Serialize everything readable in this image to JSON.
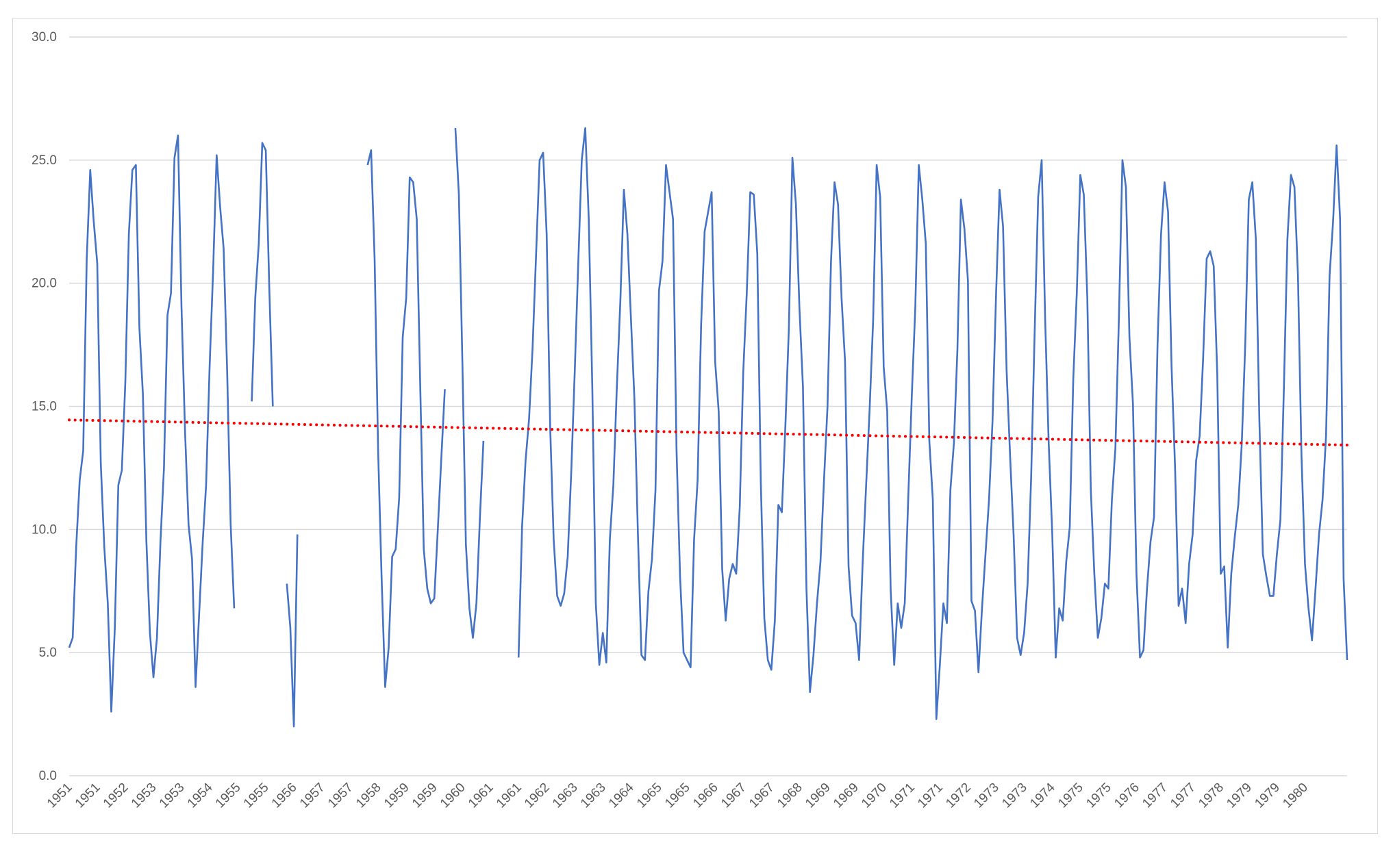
{
  "chart_data": {
    "type": "line",
    "title": "",
    "xlabel": "",
    "ylabel": "",
    "ylim": [
      0,
      30
    ],
    "y_ticks": [
      "0.0",
      "5.0",
      "10.0",
      "15.0",
      "20.0",
      "25.0",
      "30.0"
    ],
    "grid": "horizontal",
    "legend": "none",
    "x_tick_labels": [
      "1951",
      "1951",
      "1952",
      "1953",
      "1953",
      "1954",
      "1955",
      "1955",
      "1956",
      "1957",
      "1957",
      "1958",
      "1959",
      "1959",
      "1960",
      "1961",
      "1961",
      "1962",
      "1963",
      "1963",
      "1964",
      "1965",
      "1965",
      "1966",
      "1967",
      "1967",
      "1968",
      "1969",
      "1969",
      "1970",
      "1971",
      "1971",
      "1972",
      "1973",
      "1973",
      "1974",
      "1975",
      "1975",
      "1976",
      "1977",
      "1977",
      "1978",
      "1979",
      "1979",
      "1980"
    ],
    "series": [
      {
        "style": "solid",
        "color": "#4472c4",
        "values": [
          5.2,
          5.6,
          9.3,
          12,
          13.2,
          21,
          24.6,
          22.5,
          20.8,
          12.7,
          9.3,
          7,
          2.6,
          6,
          11.8,
          12.4,
          16,
          22,
          24.6,
          24.8,
          18.2,
          15.5,
          9.5,
          5.8,
          4,
          5.6,
          9.5,
          12.5,
          18.7,
          19.6,
          25.1,
          26,
          19,
          14,
          10.2,
          8.8,
          3.6,
          6.5,
          9.4,
          11.8,
          16.6,
          20.5,
          25.2,
          23.1,
          21.4,
          16.4,
          10.2,
          6.8,
          null,
          null,
          null,
          null,
          15.2,
          19.4,
          21.6,
          25.7,
          25.4,
          19.8,
          15,
          null,
          null,
          null,
          7.8,
          6,
          2,
          9.8,
          null,
          null,
          null,
          null,
          null,
          null,
          null,
          null,
          null,
          null,
          null,
          null,
          null,
          null,
          null,
          null,
          null,
          null,
          null,
          24.8,
          25.4,
          21,
          13.2,
          8,
          3.6,
          5.2,
          8.9,
          9.2,
          11.3,
          17.8,
          19.4,
          24.3,
          24.1,
          22.6,
          15.8,
          9.2,
          7.6,
          7,
          7.2,
          10,
          12.9,
          15.7,
          null,
          null,
          26.3,
          23.6,
          16.8,
          9.4,
          6.8,
          5.6,
          7,
          10.5,
          13.6,
          null,
          null,
          null,
          null,
          null,
          null,
          null,
          null,
          null,
          4.8,
          10.1,
          12.8,
          14.5,
          17.4,
          21.2,
          25,
          25.3,
          22,
          14.2,
          9.6,
          7.3,
          6.9,
          7.4,
          8.9,
          12.3,
          16.4,
          20.8,
          25,
          26.3,
          22.6,
          15.8,
          7,
          4.5,
          5.8,
          4.6,
          9.6,
          11.8,
          15.8,
          19.3,
          23.8,
          22,
          18.6,
          15.3,
          9.8,
          4.9,
          4.7,
          7.5,
          8.8,
          11.6,
          19.7,
          20.9,
          24.8,
          23.7,
          22.6,
          13.2,
          8.1,
          5,
          4.7,
          4.4,
          9.6,
          12,
          18.3,
          22.1,
          22.9,
          23.7,
          16.8,
          14.8,
          8.4,
          6.3,
          8,
          8.6,
          8.2,
          10.9,
          16.4,
          19.6,
          23.7,
          23.6,
          21.2,
          11.9,
          6.4,
          4.7,
          4.3,
          6.3,
          11,
          10.7,
          14.2,
          18.2,
          25.1,
          23.2,
          19,
          15.8,
          7.6,
          3.4,
          4.9,
          7,
          8.7,
          12,
          15,
          20.9,
          24.1,
          23.2,
          19.4,
          16.8,
          8.5,
          6.5,
          6.2,
          4.7,
          8.6,
          11.8,
          14.9,
          18.5,
          24.8,
          23.5,
          16.6,
          14.8,
          7.5,
          4.5,
          7,
          6,
          7,
          11.3,
          15.4,
          19,
          24.8,
          23.4,
          21.6,
          13.6,
          11.2,
          2.3,
          4.5,
          7,
          6.2,
          11.6,
          13.5,
          17.3,
          23.4,
          22.2,
          20.1,
          7.1,
          6.7,
          4.2,
          6.8,
          9,
          11.2,
          14.4,
          19.5,
          23.8,
          22.3,
          16.5,
          13,
          9.8,
          5.6,
          4.9,
          5.8,
          7.8,
          12.1,
          18,
          23.5,
          25,
          18.5,
          13.5,
          9.9,
          4.8,
          6.8,
          6.3,
          8.7,
          10.1,
          16.1,
          19.6,
          24.4,
          23.6,
          19.4,
          11.6,
          8.2,
          5.6,
          6.4,
          7.8,
          7.6,
          11.2,
          13.3,
          18.6,
          25,
          23.9,
          17.8,
          15.1,
          8.2,
          4.8,
          5.1,
          7.6,
          9.5,
          10.5,
          17.5,
          22,
          24.1,
          22.9,
          16.6,
          12.5,
          6.9,
          7.6,
          6.2,
          8.6,
          9.8,
          12.8,
          13.8,
          17,
          21,
          21.3,
          20.7,
          16.4,
          8.2,
          8.5,
          5.2,
          8.2,
          9.7,
          11,
          13.5,
          17.6,
          23.4,
          24.1,
          21.8,
          14.5,
          9,
          8.1,
          7.3,
          7.3,
          9,
          10.4,
          15.8,
          21.8,
          24.4,
          23.9,
          20.3,
          13,
          8.6,
          6.8,
          5.5,
          7.6,
          9.8,
          11.2,
          13.8,
          20.3,
          22.5,
          25.6,
          22.6,
          8,
          4.7
        ]
      },
      {
        "style": "dotted",
        "color": "#ff0000",
        "trendline": "linear",
        "start": 14.45,
        "end": 13.43
      }
    ]
  }
}
